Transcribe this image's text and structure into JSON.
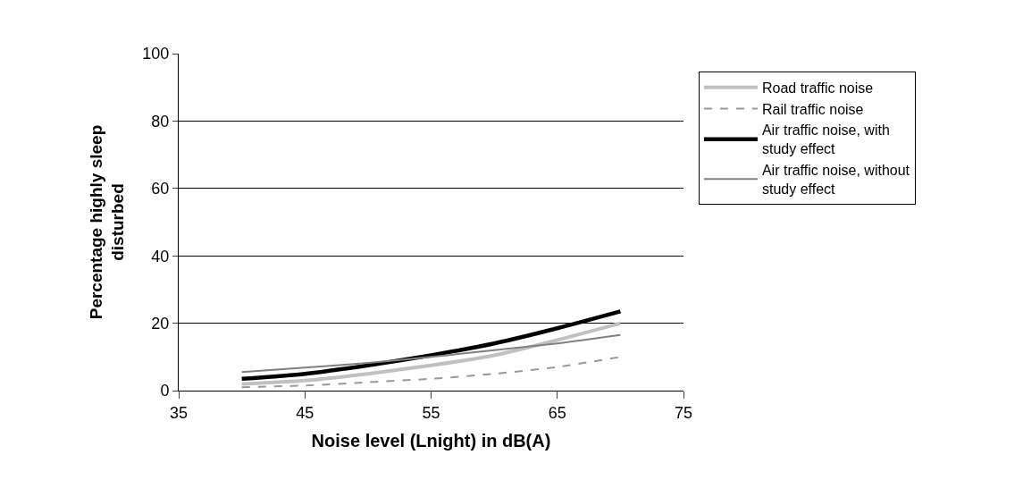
{
  "chart_data": {
    "type": "line",
    "xlabel": "Noise level (Lnight) in dB(A)",
    "ylabel": "Percentage highly sleep\ndisturbed",
    "x": [
      40,
      45,
      50,
      55,
      60,
      65,
      70
    ],
    "series": [
      {
        "name": "Road traffic noise",
        "color": "#c0c0c0",
        "line_style": "solid",
        "values": [
          2,
          3,
          5,
          7.5,
          10.5,
          15,
          20
        ]
      },
      {
        "name": "Rail traffic noise",
        "color": "#999999",
        "line_style": "dashed",
        "values": [
          1,
          1.5,
          2.5,
          3.5,
          5,
          7,
          10
        ]
      },
      {
        "name": "Air traffic noise, with\nstudy effect",
        "color": "#000000",
        "line_style": "solid",
        "values": [
          3.5,
          5,
          7.5,
          10.5,
          14,
          18.5,
          23.5
        ]
      },
      {
        "name": "Air traffic noise, without\nstudy effect",
        "color": "#808080",
        "line_style": "solid",
        "values": [
          5.5,
          6.8,
          8.2,
          10,
          12,
          14,
          16.5
        ]
      }
    ],
    "xlim": [
      35,
      75
    ],
    "xticks": [
      35,
      45,
      55,
      65,
      75
    ],
    "ylim": [
      0,
      100
    ],
    "yticks": [
      0,
      20,
      40,
      60,
      80,
      100
    ],
    "grid": "y",
    "legend": "right",
    "marker": "none"
  }
}
